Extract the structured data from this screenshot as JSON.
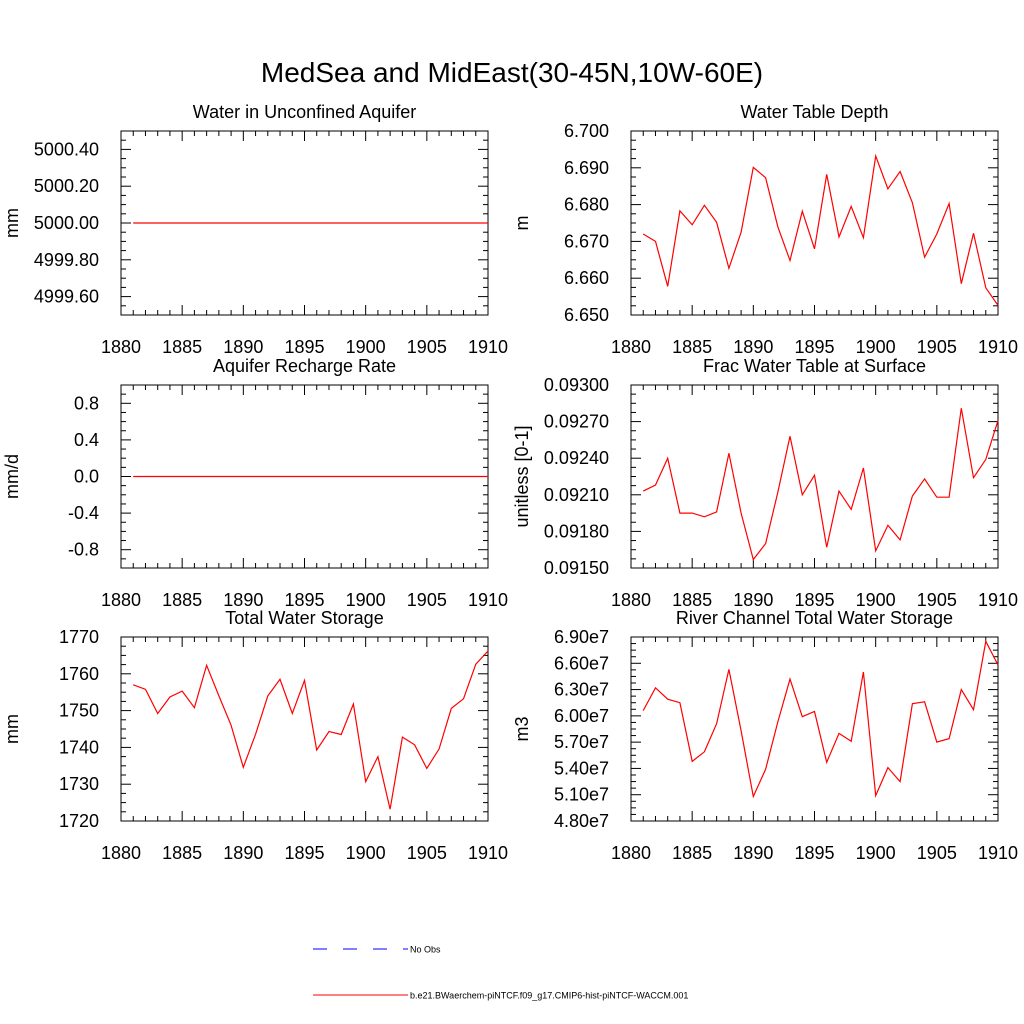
{
  "figure": {
    "title": "MedSea and MidEast(30-45N,10W-60E)",
    "line_color": "#ff0000",
    "obs_color": "#0000ff",
    "legend": [
      {
        "label": "No Obs",
        "style": "dashed",
        "color": "#0000ff"
      },
      {
        "label": "b.e21.BWaerchem-piNTCF.f09_g17.CMIP6-hist-piNTCF-WACCM.001",
        "style": "solid",
        "color": "#ff0000"
      }
    ]
  },
  "chart_data": [
    {
      "type": "line",
      "title": "Water in Unconfined Aquifer",
      "ylabel": "mm",
      "xlim": [
        1880,
        1910
      ],
      "ylim": [
        4999.5,
        5000.5
      ],
      "xticks": [
        1880,
        1885,
        1890,
        1895,
        1900,
        1905,
        1910
      ],
      "xtick_labels": [
        "1880",
        "1885",
        "1890",
        "1895",
        "1900",
        "1905",
        "1910"
      ],
      "yticks": [
        4999.6,
        4999.8,
        5000.0,
        5000.2,
        5000.4
      ],
      "ytick_labels": [
        "4999.60",
        "4999.80",
        "5000.00",
        "5000.20",
        "5000.40"
      ],
      "x": [
        1881,
        1882,
        1883,
        1884,
        1885,
        1886,
        1887,
        1888,
        1889,
        1890,
        1891,
        1892,
        1893,
        1894,
        1895,
        1896,
        1897,
        1898,
        1899,
        1900,
        1901,
        1902,
        1903,
        1904,
        1905,
        1906,
        1907,
        1908,
        1909,
        1910
      ],
      "values": [
        5000,
        5000,
        5000,
        5000,
        5000,
        5000,
        5000,
        5000,
        5000,
        5000,
        5000,
        5000,
        5000,
        5000,
        5000,
        5000,
        5000,
        5000,
        5000,
        5000,
        5000,
        5000,
        5000,
        5000,
        5000,
        5000,
        5000,
        5000,
        5000,
        5000
      ]
    },
    {
      "type": "line",
      "title": "Water Table Depth",
      "ylabel": "m",
      "xlim": [
        1880,
        1910
      ],
      "ylim": [
        6.65,
        6.7
      ],
      "xticks": [
        1880,
        1885,
        1890,
        1895,
        1900,
        1905,
        1910
      ],
      "xtick_labels": [
        "1880",
        "1885",
        "1890",
        "1895",
        "1900",
        "1905",
        "1910"
      ],
      "yticks": [
        6.65,
        6.66,
        6.67,
        6.68,
        6.69,
        6.7
      ],
      "ytick_labels": [
        "6.650",
        "6.660",
        "6.670",
        "6.680",
        "6.690",
        "6.700"
      ],
      "x": [
        1881,
        1882,
        1883,
        1884,
        1885,
        1886,
        1887,
        1888,
        1889,
        1890,
        1891,
        1892,
        1893,
        1894,
        1895,
        1896,
        1897,
        1898,
        1899,
        1900,
        1901,
        1902,
        1903,
        1904,
        1905,
        1906,
        1907,
        1908,
        1909,
        1910
      ],
      "values": [
        6.672,
        6.67,
        6.6578,
        6.6783,
        6.6745,
        6.6798,
        6.6752,
        6.6627,
        6.6725,
        6.6901,
        6.6873,
        6.674,
        6.6648,
        6.6782,
        6.668,
        6.6882,
        6.6712,
        6.6795,
        6.671,
        6.6932,
        6.6843,
        6.689,
        6.6805,
        6.6657,
        6.672,
        6.6803,
        6.6585,
        6.6722,
        6.6574,
        6.6526
      ]
    },
    {
      "type": "line",
      "title": "Aquifer Recharge Rate",
      "ylabel": "mm/d",
      "xlim": [
        1880,
        1910
      ],
      "ylim": [
        -1.0,
        1.0
      ],
      "xticks": [
        1880,
        1885,
        1890,
        1895,
        1900,
        1905,
        1910
      ],
      "xtick_labels": [
        "1880",
        "1885",
        "1890",
        "1895",
        "1900",
        "1905",
        "1910"
      ],
      "yticks": [
        -0.8,
        -0.4,
        0.0,
        0.4,
        0.8
      ],
      "ytick_labels": [
        "-0.8",
        "-0.4",
        "0.0",
        "0.4",
        "0.8"
      ],
      "x": [
        1881,
        1882,
        1883,
        1884,
        1885,
        1886,
        1887,
        1888,
        1889,
        1890,
        1891,
        1892,
        1893,
        1894,
        1895,
        1896,
        1897,
        1898,
        1899,
        1900,
        1901,
        1902,
        1903,
        1904,
        1905,
        1906,
        1907,
        1908,
        1909,
        1910
      ],
      "values": [
        0,
        0,
        0,
        0,
        0,
        0,
        0,
        0,
        0,
        0,
        0,
        0,
        0,
        0,
        0,
        0,
        0,
        0,
        0,
        0,
        0,
        0,
        0,
        0,
        0,
        0,
        0,
        0,
        0,
        0
      ]
    },
    {
      "type": "line",
      "title": "Frac Water Table at Surface",
      "ylabel": "unitless [0-1]",
      "xlim": [
        1880,
        1910
      ],
      "ylim": [
        0.0915,
        0.093
      ],
      "xticks": [
        1880,
        1885,
        1890,
        1895,
        1900,
        1905,
        1910
      ],
      "xtick_labels": [
        "1880",
        "1885",
        "1890",
        "1895",
        "1900",
        "1905",
        "1910"
      ],
      "yticks": [
        0.0915,
        0.0918,
        0.0921,
        0.0924,
        0.0927,
        0.093
      ],
      "ytick_labels": [
        "0.09150",
        "0.09180",
        "0.09210",
        "0.09240",
        "0.09270",
        "0.09300"
      ],
      "x": [
        1881,
        1882,
        1883,
        1884,
        1885,
        1886,
        1887,
        1888,
        1889,
        1890,
        1891,
        1892,
        1893,
        1894,
        1895,
        1896,
        1897,
        1898,
        1899,
        1900,
        1901,
        1902,
        1903,
        1904,
        1905,
        1906,
        1907,
        1908,
        1909,
        1910
      ],
      "values": [
        0.09213,
        0.09218,
        0.0924,
        0.09195,
        0.09195,
        0.09192,
        0.09196,
        0.09244,
        0.09195,
        0.09157,
        0.0917,
        0.09212,
        0.09258,
        0.0921,
        0.09226,
        0.09167,
        0.09213,
        0.09198,
        0.09232,
        0.09164,
        0.09185,
        0.09173,
        0.09209,
        0.09223,
        0.09208,
        0.09208,
        0.09281,
        0.09224,
        0.09239,
        0.09271
      ]
    },
    {
      "type": "line",
      "title": "Total Water Storage",
      "ylabel": "mm",
      "xlim": [
        1880,
        1910
      ],
      "ylim": [
        1720,
        1770
      ],
      "xticks": [
        1880,
        1885,
        1890,
        1895,
        1900,
        1905,
        1910
      ],
      "xtick_labels": [
        "1880",
        "1885",
        "1890",
        "1895",
        "1900",
        "1905",
        "1910"
      ],
      "yticks": [
        1720,
        1730,
        1740,
        1750,
        1760,
        1770
      ],
      "ytick_labels": [
        "1720",
        "1730",
        "1740",
        "1750",
        "1760",
        "1770"
      ],
      "x": [
        1881,
        1882,
        1883,
        1884,
        1885,
        1886,
        1887,
        1888,
        1889,
        1890,
        1891,
        1892,
        1893,
        1894,
        1895,
        1896,
        1897,
        1898,
        1899,
        1900,
        1901,
        1902,
        1903,
        1904,
        1905,
        1906,
        1907,
        1908,
        1909,
        1910
      ],
      "values": [
        1757,
        1755.8,
        1749.2,
        1753.7,
        1755.3,
        1750.8,
        1762.3,
        1754,
        1746,
        1734.6,
        1743.6,
        1754,
        1758.5,
        1749.2,
        1758.2,
        1739.3,
        1744.3,
        1743.5,
        1751.8,
        1730.7,
        1737.5,
        1723.2,
        1742.8,
        1740.7,
        1734.3,
        1739.6,
        1750.6,
        1753.2,
        1762.6,
        1766.2
      ]
    },
    {
      "type": "line",
      "title": "River Channel Total Water Storage",
      "ylabel": "m3",
      "xlim": [
        1880,
        1910
      ],
      "ylim": [
        48000000,
        69000000
      ],
      "xticks": [
        1880,
        1885,
        1890,
        1895,
        1900,
        1905,
        1910
      ],
      "xtick_labels": [
        "1880",
        "1885",
        "1890",
        "1895",
        "1900",
        "1905",
        "1910"
      ],
      "yticks": [
        48000000,
        51000000,
        54000000,
        57000000,
        60000000,
        63000000,
        66000000,
        69000000
      ],
      "ytick_labels": [
        "4.80e7",
        "5.10e7",
        "5.40e7",
        "5.70e7",
        "6.00e7",
        "6.30e7",
        "6.60e7",
        "6.90e7"
      ],
      "x": [
        1881,
        1882,
        1883,
        1884,
        1885,
        1886,
        1887,
        1888,
        1889,
        1890,
        1891,
        1892,
        1893,
        1894,
        1895,
        1896,
        1897,
        1898,
        1899,
        1900,
        1901,
        1902,
        1903,
        1904,
        1905,
        1906,
        1907,
        1908,
        1909,
        1910
      ],
      "values": [
        60600000,
        63200000,
        61900000,
        61500000,
        54800000,
        55900000,
        59100000,
        65300000,
        58300000,
        50800000,
        53900000,
        59300000,
        64200000,
        59900000,
        60500000,
        54700000,
        58000000,
        57100000,
        65000000,
        50900000,
        54100000,
        52500000,
        61400000,
        61600000,
        57000000,
        57400000,
        63000000,
        60700000,
        68500000,
        65800000
      ]
    }
  ]
}
